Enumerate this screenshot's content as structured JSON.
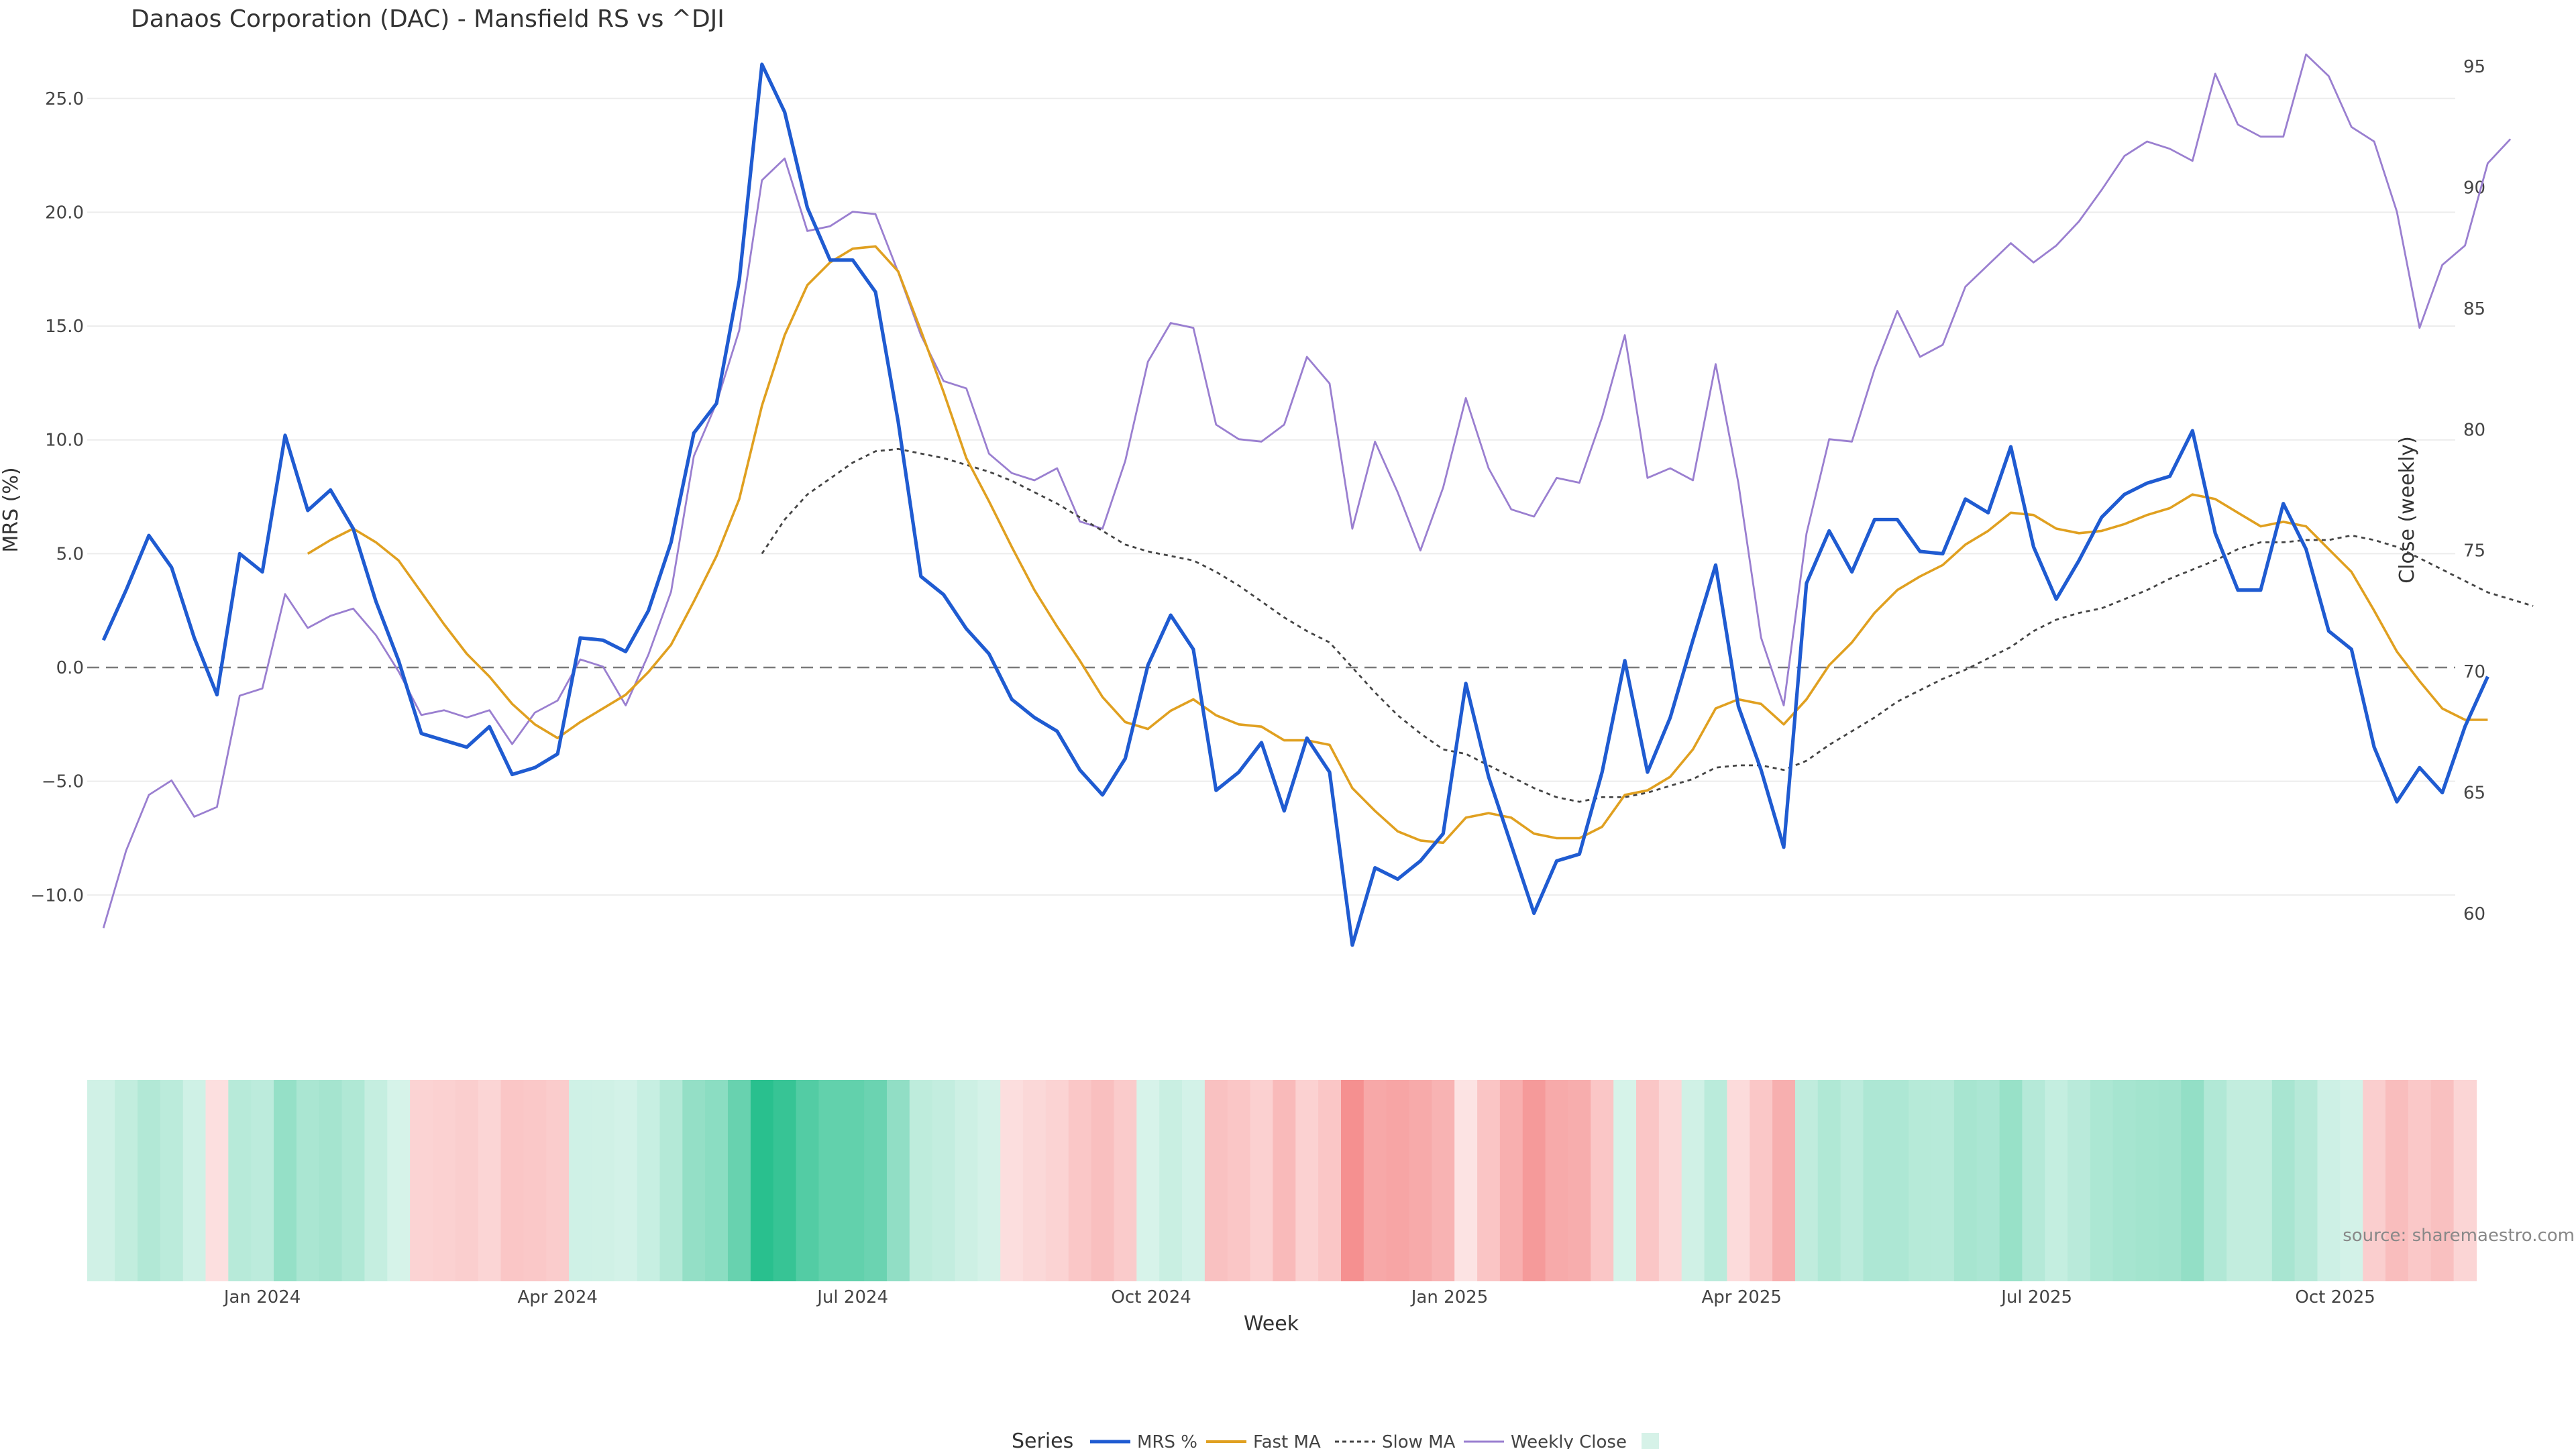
{
  "chart_data": {
    "type": "line",
    "title": "Danaos Corporation (DAC) - Mansfield RS vs ^DJI",
    "xlabel": "Week",
    "ylabel_left": "MRS (%)",
    "ylabel_right": "Close (weekly)",
    "source": "source: sharemaestro.com",
    "legend": {
      "title": "Series",
      "placement": "bottom-center",
      "entries": [
        "MRS %",
        "Fast MA",
        "Slow MA",
        "Weekly Close",
        ""
      ]
    },
    "x_start": "2023-11-13",
    "x_range": [
      "2023-11-08",
      "2025-11-07"
    ],
    "x_ticks": [
      {
        "date": "2024-01-01",
        "label": "Jan 2024"
      },
      {
        "date": "2024-04-01",
        "label": "Apr 2024"
      },
      {
        "date": "2024-07-01",
        "label": "Jul 2024"
      },
      {
        "date": "2024-10-01",
        "label": "Oct 2024"
      },
      {
        "date": "2025-01-01",
        "label": "Jan 2025"
      },
      {
        "date": "2025-04-01",
        "label": "Apr 2025"
      },
      {
        "date": "2025-07-01",
        "label": "Jul 2025"
      },
      {
        "date": "2025-10-01",
        "label": "Oct 2025"
      }
    ],
    "y_left": {
      "range": [
        -14,
        28
      ],
      "ticks": [
        "25.0",
        "20.0",
        "15.0",
        "10.0",
        "5.0",
        "0.0",
        "−5.0",
        "−10.0"
      ],
      "tick_values": [
        25,
        20,
        15,
        10,
        5,
        0,
        -5,
        -10
      ]
    },
    "y_right": {
      "range": [
        57,
        96.5
      ],
      "ticks": [
        "95",
        "90",
        "85",
        "80",
        "75",
        "70",
        "65",
        "60"
      ],
      "tick_values": [
        95,
        90,
        85,
        80,
        75,
        70,
        65,
        60
      ]
    },
    "grid": true,
    "zero_line": true,
    "colors": {
      "mrs": "#1f5bd1",
      "fast": "#e0a020",
      "slow": "#444444",
      "close": "#9a7fd0",
      "pos": "#26bf8c",
      "neg": "#f48a8a"
    },
    "series": [
      {
        "name": "MRS %",
        "axis": "left",
        "values": [
          1.2,
          3.4,
          5.8,
          4.4,
          1.3,
          -1.2,
          5.0,
          4.2,
          10.2,
          6.9,
          7.8,
          6.1,
          2.9,
          0.3,
          -2.9,
          -3.2,
          -3.5,
          -2.6,
          -4.7,
          -4.4,
          -3.8,
          1.3,
          1.2,
          0.7,
          2.5,
          5.5,
          10.3,
          11.6,
          17.0,
          26.5,
          24.4,
          20.2,
          17.9,
          17.9,
          16.5,
          10.8,
          4.0,
          3.2,
          1.7,
          0.6,
          -1.4,
          -2.2,
          -2.8,
          -4.5,
          -5.6,
          -4.0,
          0.1,
          2.3,
          0.8,
          -5.4,
          -4.6,
          -3.3,
          -6.3,
          -3.1,
          -4.6,
          -12.2,
          -8.8,
          -9.3,
          -8.5,
          -7.3,
          -0.7,
          -4.8,
          -7.8,
          -10.8,
          -8.5,
          -8.2,
          -4.6,
          0.3,
          -4.6,
          -2.2,
          1.2,
          4.5,
          -1.7,
          -4.5,
          -7.9,
          3.7,
          6.0,
          4.2,
          6.5,
          6.5,
          5.1,
          5.0,
          7.4,
          6.8,
          9.7,
          5.3,
          3.0,
          4.7,
          6.6,
          7.6,
          8.1,
          8.4,
          10.4,
          5.9,
          3.4,
          3.4,
          7.2,
          5.2,
          1.6,
          0.8,
          -3.5,
          -5.9,
          -4.4,
          -5.5,
          -2.6,
          -0.4
        ]
      },
      {
        "name": "Fast MA",
        "axis": "left",
        "values": [
          null,
          null,
          null,
          null,
          null,
          null,
          null,
          null,
          null,
          5.0,
          5.6,
          6.1,
          5.5,
          4.7,
          3.3,
          1.9,
          0.6,
          -0.4,
          -1.6,
          -2.5,
          -3.1,
          -2.4,
          -1.8,
          -1.2,
          -0.2,
          1.0,
          2.9,
          4.9,
          7.4,
          11.5,
          14.6,
          16.8,
          17.8,
          18.4,
          18.5,
          17.4,
          14.8,
          12.1,
          9.2,
          7.3,
          5.3,
          3.4,
          1.8,
          0.3,
          -1.3,
          -2.4,
          -2.7,
          -1.9,
          -1.4,
          -2.1,
          -2.5,
          -2.6,
          -3.2,
          -3.2,
          -3.4,
          -5.3,
          -6.3,
          -7.2,
          -7.6,
          -7.7,
          -6.6,
          -6.4,
          -6.6,
          -7.3,
          -7.5,
          -7.5,
          -7.0,
          -5.6,
          -5.4,
          -4.8,
          -3.6,
          -1.8,
          -1.4,
          -1.6,
          -2.5,
          -1.4,
          0.1,
          1.1,
          2.4,
          3.4,
          4.0,
          4.5,
          5.4,
          6.0,
          6.8,
          6.7,
          6.1,
          5.9,
          6.0,
          6.3,
          6.7,
          7.0,
          7.6,
          7.4,
          6.8,
          6.2,
          6.4,
          6.2,
          5.2,
          4.2,
          2.5,
          0.7,
          -0.6,
          -1.8,
          -2.3,
          -2.3
        ]
      },
      {
        "name": "Slow MA",
        "axis": "left",
        "values": [
          null,
          null,
          null,
          null,
          null,
          null,
          null,
          null,
          null,
          null,
          null,
          null,
          null,
          null,
          null,
          null,
          null,
          null,
          null,
          null,
          null,
          null,
          null,
          null,
          null,
          null,
          null,
          null,
          null,
          5.0,
          6.5,
          7.6,
          8.3,
          9.0,
          9.5,
          9.6,
          9.4,
          9.2,
          8.9,
          8.6,
          8.2,
          7.7,
          7.2,
          6.6,
          6.0,
          5.4,
          5.1,
          4.9,
          4.7,
          4.2,
          3.6,
          2.9,
          2.2,
          1.6,
          1.1,
          0.0,
          -1.1,
          -2.1,
          -2.9,
          -3.6,
          -3.8,
          -4.3,
          -4.8,
          -5.3,
          -5.7,
          -5.9,
          -5.7,
          -5.7,
          -5.5,
          -5.2,
          -4.9,
          -4.4,
          -4.3,
          -4.3,
          -4.5,
          -4.1,
          -3.4,
          -2.8,
          -2.2,
          -1.5,
          -1.0,
          -0.5,
          -0.1,
          0.4,
          0.9,
          1.6,
          2.1,
          2.4,
          2.6,
          3.0,
          3.4,
          3.9,
          4.3,
          4.7,
          5.2,
          5.5,
          5.5,
          5.6,
          5.6,
          5.8,
          5.6,
          5.3,
          4.8,
          4.3,
          3.8,
          3.3,
          3.0,
          2.7
        ]
      },
      {
        "name": "Weekly Close",
        "axis": "right",
        "values": [
          59.4,
          62.6,
          64.9,
          65.5,
          64.0,
          64.4,
          69.0,
          69.3,
          73.2,
          71.8,
          72.3,
          72.6,
          71.5,
          70.0,
          68.2,
          68.4,
          68.1,
          68.4,
          67.0,
          68.3,
          68.8,
          70.5,
          70.2,
          68.6,
          70.7,
          73.3,
          78.9,
          81.1,
          84.1,
          90.3,
          91.2,
          88.2,
          88.4,
          89.0,
          88.9,
          86.5,
          83.9,
          82.0,
          81.7,
          79.0,
          78.2,
          77.9,
          78.4,
          76.2,
          75.9,
          78.7,
          82.8,
          84.4,
          84.2,
          80.2,
          79.6,
          79.5,
          80.2,
          83.0,
          81.9,
          75.9,
          79.5,
          77.4,
          75.0,
          77.6,
          81.3,
          78.4,
          76.7,
          76.4,
          78.0,
          77.8,
          80.5,
          83.9,
          78.0,
          78.4,
          77.9,
          82.7,
          77.8,
          71.4,
          68.6,
          75.7,
          79.6,
          79.5,
          82.5,
          84.9,
          83.0,
          83.5,
          85.9,
          86.8,
          87.7,
          86.9,
          87.6,
          88.6,
          89.9,
          91.3,
          91.9,
          91.6,
          91.1,
          94.7,
          92.6,
          92.1,
          92.1,
          95.5,
          94.6,
          92.5,
          91.9,
          89.0,
          84.2,
          86.8,
          87.6,
          91.0,
          92.0
        ]
      }
    ],
    "heatmap": {
      "range": [
        -13,
        27
      ],
      "note": "per-week strip colored by MRS %"
    }
  }
}
